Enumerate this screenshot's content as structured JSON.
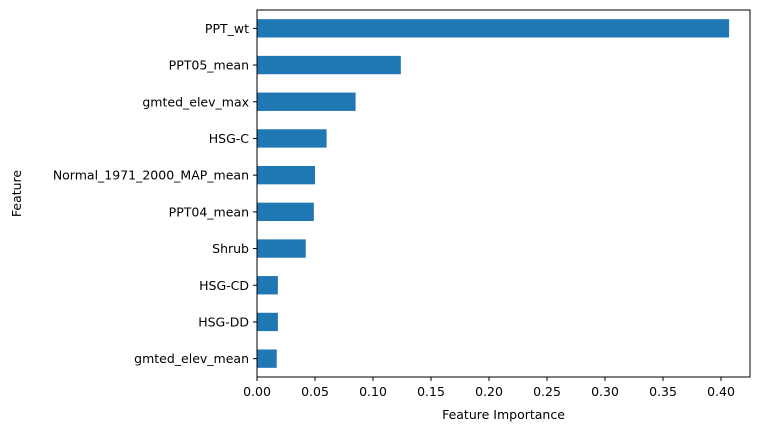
{
  "chart_data": {
    "type": "bar",
    "orientation": "horizontal",
    "title": "",
    "xlabel": "Feature Importance",
    "ylabel": "Feature",
    "categories": [
      "PPT_wt",
      "PPT05_mean",
      "gmted_elev_max",
      "HSG-C",
      "Normal_1971_2000_MAP_mean",
      "PPT04_mean",
      "Shrub",
      "HSG-CD",
      "HSG-DD",
      "gmted_elev_mean"
    ],
    "values": [
      0.407,
      0.124,
      0.085,
      0.06,
      0.05,
      0.049,
      0.042,
      0.018,
      0.018,
      0.017
    ],
    "xlim": [
      0.0,
      0.425
    ],
    "xticks": [
      "0.00",
      "0.05",
      "0.10",
      "0.15",
      "0.20",
      "0.25",
      "0.30",
      "0.35",
      "0.40"
    ],
    "grid": false,
    "legend": "none",
    "bar_color": "#1f77b4"
  }
}
